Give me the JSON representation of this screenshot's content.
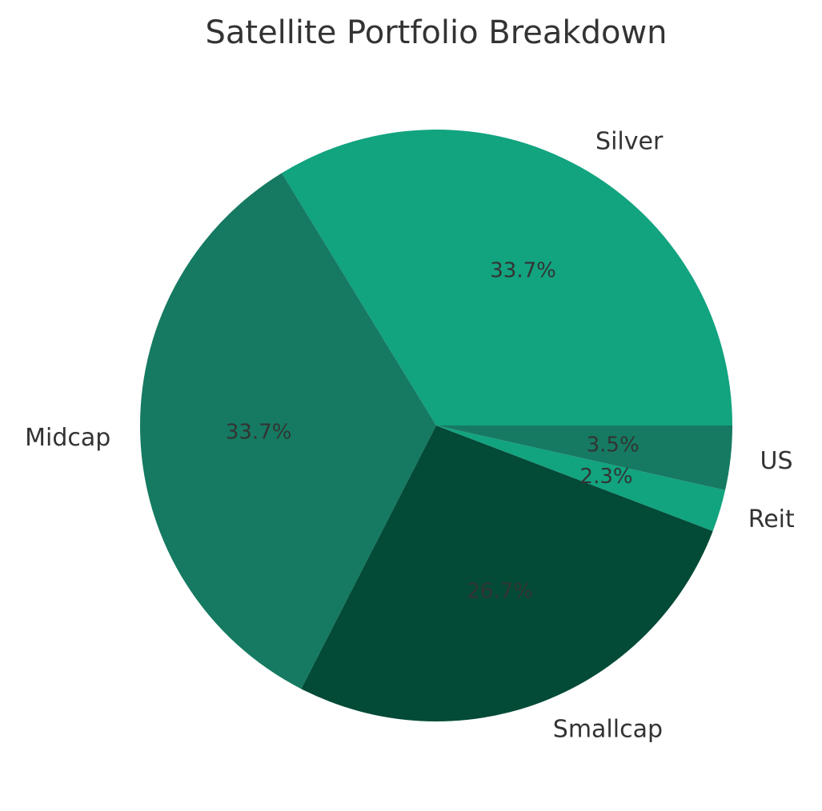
{
  "chart_data": {
    "type": "pie",
    "title": "Satellite Portfolio Breakdown",
    "start_angle_deg": 0,
    "direction": "counterclockwise",
    "slices": [
      {
        "label": "Silver",
        "value": 33.7,
        "pct_label": "33.7%",
        "color": "#12a37f"
      },
      {
        "label": "Midcap",
        "value": 33.7,
        "pct_label": "33.7%",
        "color": "#157a61"
      },
      {
        "label": "Smallcap",
        "value": 26.7,
        "pct_label": "26.7%",
        "color": "#034a37"
      },
      {
        "label": "Reit",
        "value": 2.3,
        "pct_label": "2.3%",
        "color": "#12a37f"
      },
      {
        "label": "US",
        "value": 3.5,
        "pct_label": "3.5%",
        "color": "#157a61"
      }
    ]
  }
}
